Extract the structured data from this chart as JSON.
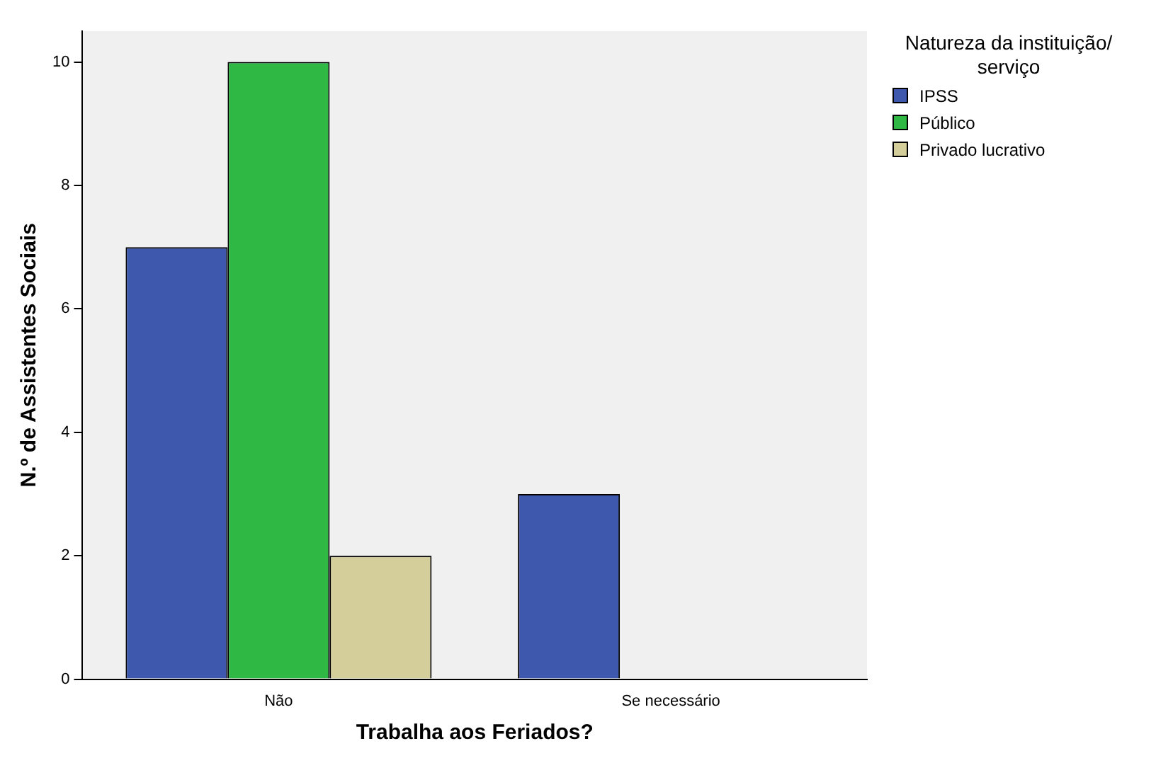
{
  "chart_data": {
    "type": "bar",
    "xlabel": "Trabalha aos Feriados?",
    "ylabel": "N.º de Assistentes Sociais",
    "legend_title": "Natureza da instituição/ serviço",
    "legend": "top right",
    "grid": false,
    "categories": [
      "Não",
      "Se necessário"
    ],
    "ylim": [
      0,
      10.5
    ],
    "yticks": [
      0,
      2,
      4,
      6,
      8,
      10
    ],
    "series": [
      {
        "name": "IPSS",
        "color": "#3d58ad",
        "values": [
          7,
          3
        ]
      },
      {
        "name": "Público",
        "color": "#2fb844",
        "values": [
          10,
          null
        ]
      },
      {
        "name": "Privado lucrativo",
        "color": "#d3ce9a",
        "values": [
          2,
          null
        ]
      }
    ]
  }
}
